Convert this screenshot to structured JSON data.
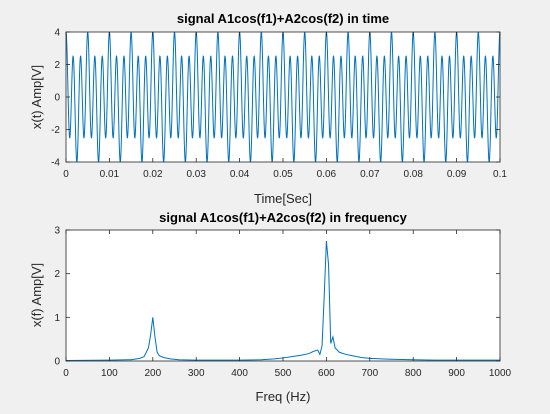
{
  "figure": {
    "background": "#f0f0f0",
    "axes_background": "#ffffff",
    "line_color": "#0072bd",
    "axis_color": "#262626"
  },
  "chart_data": [
    {
      "type": "line",
      "title": "signal A1cos(f1)+A2cos(f2) in time",
      "xlabel": "Time[Sec]",
      "ylabel": "x(t) Amp[V]",
      "xlim": [
        0,
        0.1
      ],
      "ylim": [
        -4,
        4
      ],
      "xticks": [
        "0",
        "0.01",
        "0.02",
        "0.03",
        "0.04",
        "0.05",
        "0.06",
        "0.07",
        "0.08",
        "0.09",
        "0.1"
      ],
      "yticks": [
        "-4",
        "-2",
        "0",
        "2",
        "4"
      ],
      "grid": false,
      "signal": {
        "components": [
          {
            "amplitude": 1,
            "frequency_hz": 200
          },
          {
            "amplitude": 3,
            "frequency_hz": 600
          }
        ],
        "t_start": 0,
        "t_end": 0.1
      }
    },
    {
      "type": "line",
      "title": "signal A1cos(f1)+A2cos(f2) in frequency",
      "xlabel": "Freq (Hz)",
      "ylabel": "x(f) Amp[V]",
      "xlim": [
        0,
        1000
      ],
      "ylim": [
        0,
        3
      ],
      "xticks": [
        "0",
        "100",
        "200",
        "300",
        "400",
        "500",
        "600",
        "700",
        "800",
        "900",
        "1000"
      ],
      "yticks": [
        "0",
        "1",
        "2",
        "3"
      ],
      "grid": false,
      "x": [
        0,
        100,
        150,
        170,
        180,
        190,
        195,
        200,
        205,
        210,
        215,
        225,
        240,
        260,
        300,
        400,
        450,
        480,
        500,
        520,
        540,
        560,
        570,
        580,
        585,
        590,
        595,
        600,
        605,
        610,
        615,
        620,
        630,
        645,
        660,
        680,
        700,
        750,
        800,
        850,
        900,
        1000
      ],
      "y": [
        0.01,
        0.02,
        0.03,
        0.06,
        0.1,
        0.3,
        0.6,
        1.0,
        0.55,
        0.2,
        0.12,
        0.08,
        0.05,
        0.03,
        0.02,
        0.02,
        0.03,
        0.05,
        0.07,
        0.1,
        0.13,
        0.17,
        0.22,
        0.25,
        0.15,
        0.35,
        1.5,
        2.75,
        2.2,
        0.4,
        0.55,
        0.3,
        0.2,
        0.15,
        0.12,
        0.08,
        0.06,
        0.04,
        0.03,
        0.02,
        0.02,
        0.02
      ]
    }
  ]
}
